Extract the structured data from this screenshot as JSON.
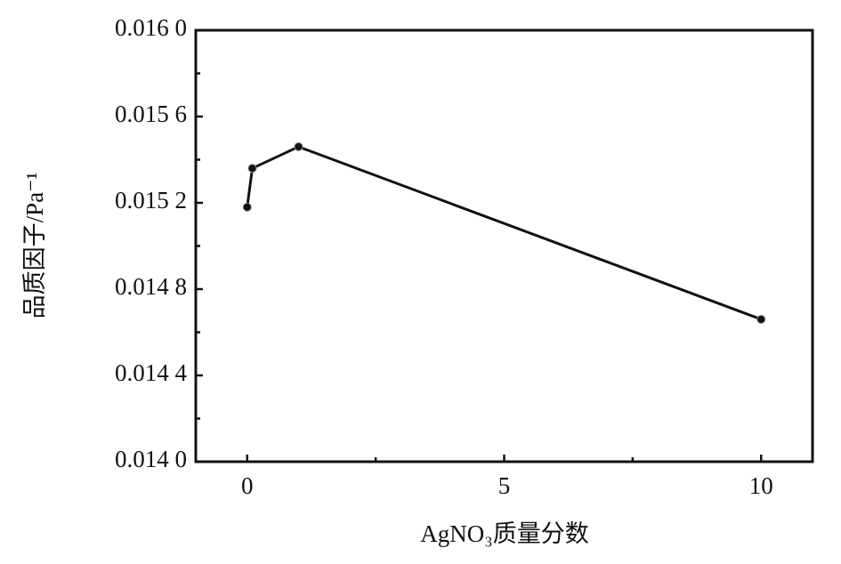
{
  "chart_data": {
    "type": "line",
    "x_label": "AgNO₃质量分数",
    "y_label": "品质因子/Pa⁻¹",
    "x": [
      0,
      0.1,
      1,
      10
    ],
    "series": [
      {
        "color": "#111111",
        "values": [
          0.01518,
          0.01536,
          0.01546,
          0.01466
        ]
      }
    ],
    "xlim": [
      -1,
      11
    ],
    "xticks": [
      0,
      5,
      10
    ],
    "minor_xticks": [
      2.5,
      7.5
    ],
    "ylim": [
      0.014,
      0.016
    ],
    "yticks": [
      {
        "value": 0.014,
        "label": "0.014 0"
      },
      {
        "value": 0.0144,
        "label": "0.014 4"
      },
      {
        "value": 0.0148,
        "label": "0.014 8"
      },
      {
        "value": 0.0152,
        "label": "0.015 2"
      },
      {
        "value": 0.0156,
        "label": "0.015 6"
      },
      {
        "value": 0.016,
        "label": "0.016 0"
      }
    ],
    "minor_yticks": [
      0.0142,
      0.0146,
      0.015,
      0.0154,
      0.0158
    ],
    "grid": false
  }
}
